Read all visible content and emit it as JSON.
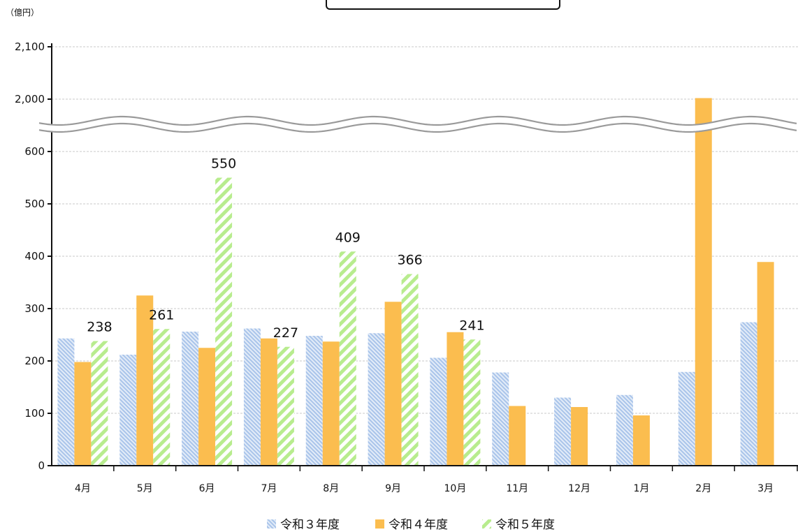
{
  "chart_data": {
    "type": "bar",
    "title": "",
    "unit_label": "（億円）",
    "categories": [
      "4月",
      "5月",
      "6月",
      "7月",
      "8月",
      "9月",
      "10月",
      "11月",
      "12月",
      "1月",
      "2月",
      "3月"
    ],
    "y_ticks_lower": [
      0,
      100,
      200,
      300,
      400,
      500,
      600
    ],
    "y_ticks_upper": [
      2000,
      2100
    ],
    "y_tick_labels": [
      "0",
      "100",
      "200",
      "300",
      "400",
      "500",
      "600",
      "2,000",
      "2,100"
    ],
    "axis_break": {
      "lower_max": 600,
      "upper_min": 2000,
      "upper_max": 2100
    },
    "grid": true,
    "legend_position": "bottom",
    "series": [
      {
        "name": "令和３年度",
        "pattern": "diagonal-light-blue",
        "color": "#a9c4ea",
        "values": [
          243,
          212,
          256,
          262,
          248,
          253,
          206,
          178,
          130,
          135,
          179,
          274
        ],
        "show_labels": false
      },
      {
        "name": "令和４年度",
        "pattern": "solid",
        "color": "#fbbd4f",
        "values": [
          198,
          325,
          225,
          243,
          237,
          313,
          255,
          114,
          112,
          96,
          2002,
          389
        ],
        "show_labels": false
      },
      {
        "name": "令和５年度",
        "pattern": "diagonal-light-green",
        "color": "#b8ec8e",
        "values": [
          238,
          261,
          550,
          227,
          409,
          366,
          241,
          null,
          null,
          null,
          null,
          null
        ],
        "data_labels": [
          "238",
          "261",
          "550",
          "227",
          "409",
          "366",
          "241",
          null,
          null,
          null,
          null,
          null
        ],
        "show_labels": true
      }
    ]
  }
}
